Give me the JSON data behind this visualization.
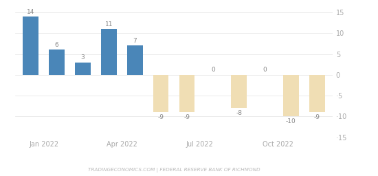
{
  "values": [
    14,
    6,
    3,
    11,
    7,
    -9,
    -9,
    0,
    -8,
    0,
    -10,
    -9
  ],
  "labels": [
    "14",
    "6",
    "3",
    "11",
    "7",
    "-9",
    "-9",
    "0",
    "-8",
    "0",
    "-10",
    "-9"
  ],
  "x_positions": [
    0,
    1,
    2,
    3,
    4,
    5,
    6,
    7,
    8,
    9,
    10,
    11
  ],
  "positive_color": "#4a86b8",
  "negative_color": "#f0deb4",
  "xtick_positions": [
    0.5,
    3.5,
    6.5,
    9.5
  ],
  "xtick_labels": [
    "Jan 2022",
    "Apr 2022",
    "Jul 2022",
    "Oct 2022"
  ],
  "ylim": [
    -15,
    15
  ],
  "yticks": [
    -15,
    -10,
    -5,
    0,
    5,
    10,
    15
  ],
  "footer": "TRADINGECONOMICS.COM | FEDERAL RESERVE BANK OF RICHMOND",
  "bg_color": "#ffffff",
  "grid_color": "#e8e8e8"
}
